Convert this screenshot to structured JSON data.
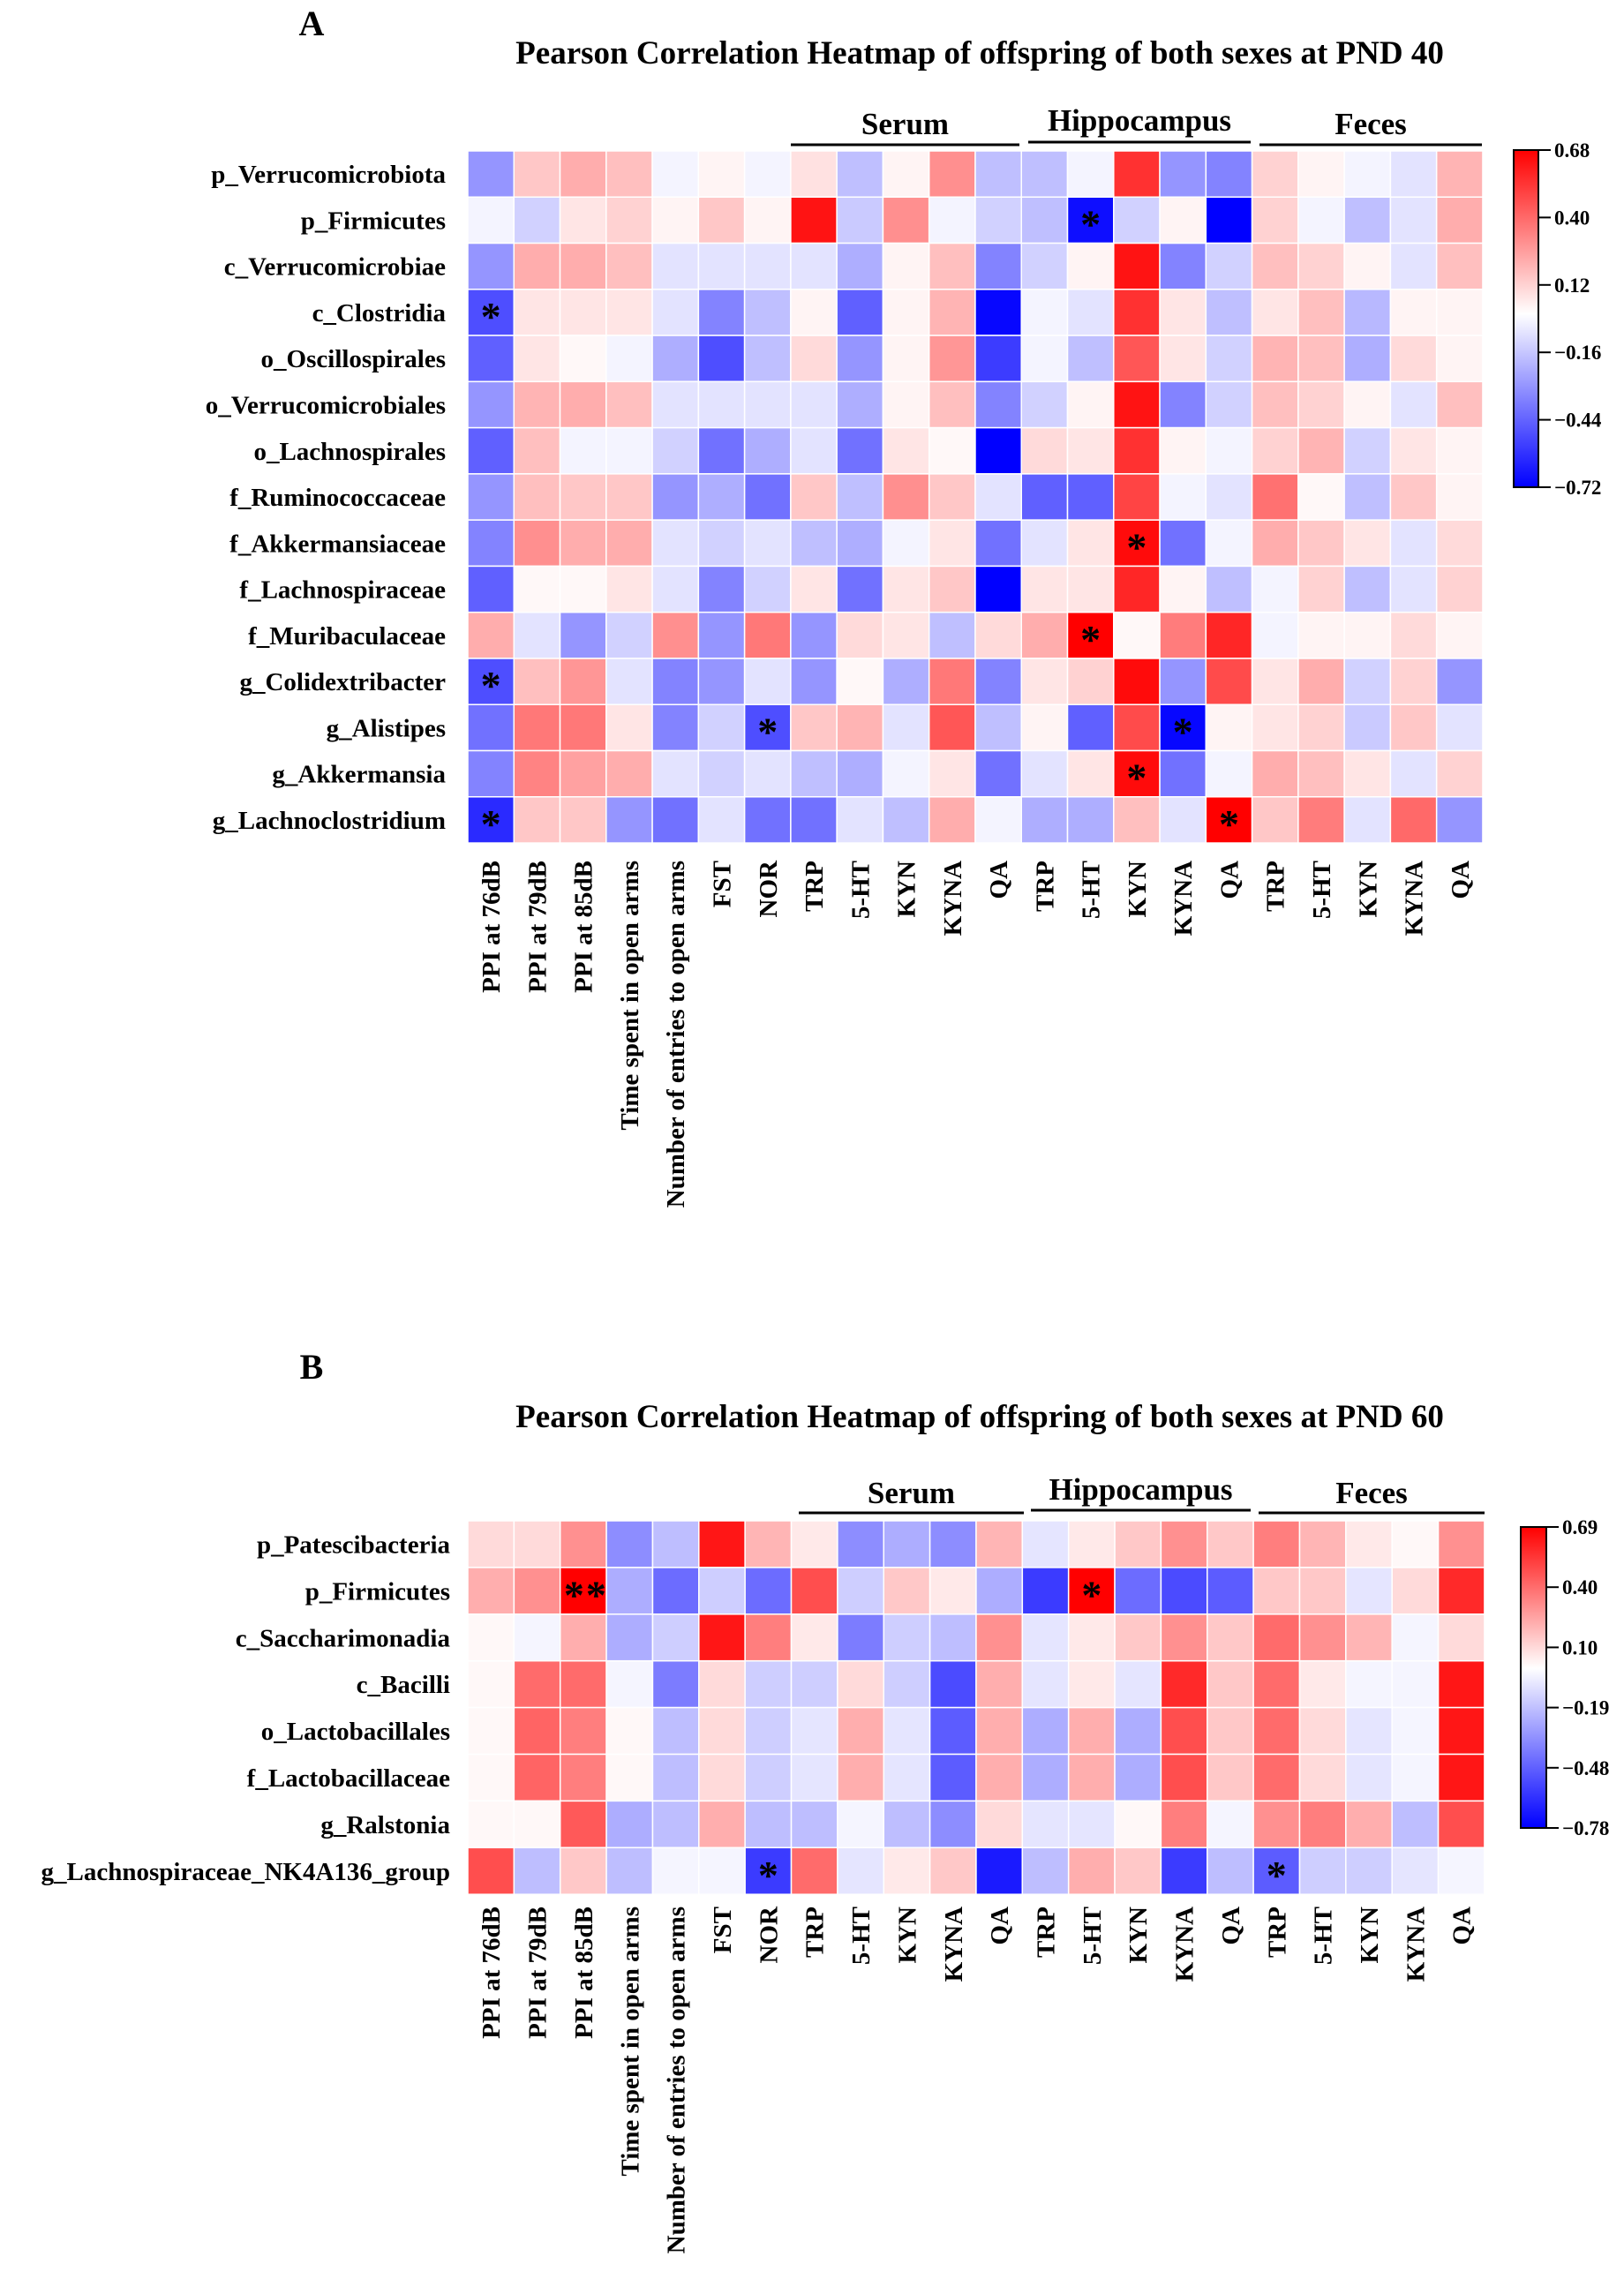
{
  "chart_data": [
    {
      "type": "heatmap",
      "panel": "A",
      "title": "Pearson Correlation Heatmap of offspring of both sexes at PND 40",
      "groups": [
        "Serum",
        "Hippocampus",
        "Feces"
      ],
      "columns": [
        "PPI at 76dB",
        "PPI at 79dB",
        "PPI at 85dB",
        "Time spent in open arms",
        "Number of entries to open arms",
        "FST",
        "NOR",
        "TRP",
        "5-HT",
        "KYN",
        "KYNA",
        "QA",
        "TRP",
        "5-HT",
        "KYN",
        "KYNA",
        "QA",
        "TRP",
        "5-HT",
        "KYN",
        "KYNA",
        "QA"
      ],
      "rows": [
        "p_Verrucomicrobiota",
        "p_Firmicutes",
        "c_Verrucomicrobiae",
        "c_Clostridia",
        "o_Oscillospirales",
        "o_Verrucomicrobiales",
        "o_Lachnospirales",
        "f_Ruminococcaceae",
        "f_Akkermansiaceae",
        "f_Lachnospiraceae",
        "f_Muribaculaceae",
        "g_Colidextribacter",
        "g_Alistipes",
        "g_Akkermansia",
        "g_Lachnoclostridium"
      ],
      "values": [
        [
          -0.3,
          0.15,
          0.22,
          0.17,
          -0.03,
          0.03,
          -0.03,
          0.08,
          -0.18,
          0.03,
          0.3,
          -0.18,
          -0.18,
          -0.03,
          0.55,
          -0.3,
          -0.35,
          0.12,
          0.03,
          -0.03,
          -0.08,
          0.2
        ],
        [
          -0.03,
          -0.13,
          0.07,
          0.12,
          0.03,
          0.15,
          0.03,
          0.63,
          -0.15,
          0.3,
          -0.03,
          -0.13,
          -0.18,
          -0.68,
          -0.13,
          0.03,
          -0.72,
          0.12,
          -0.03,
          -0.18,
          -0.08,
          0.22
        ],
        [
          -0.3,
          0.22,
          0.22,
          0.17,
          -0.08,
          -0.08,
          -0.08,
          -0.08,
          -0.23,
          0.03,
          0.17,
          -0.35,
          -0.13,
          0.03,
          0.63,
          -0.35,
          -0.13,
          0.17,
          0.12,
          0.03,
          -0.08,
          0.17
        ],
        [
          -0.5,
          0.07,
          0.07,
          0.07,
          -0.08,
          -0.35,
          -0.18,
          0.03,
          -0.45,
          0.03,
          0.2,
          -0.7,
          -0.03,
          -0.08,
          0.55,
          0.07,
          -0.18,
          0.07,
          0.17,
          -0.2,
          0.03,
          0.03
        ],
        [
          -0.45,
          0.07,
          0.02,
          -0.03,
          -0.23,
          -0.5,
          -0.18,
          0.1,
          -0.3,
          0.03,
          0.28,
          -0.55,
          -0.03,
          -0.18,
          0.45,
          0.07,
          -0.13,
          0.2,
          0.17,
          -0.23,
          0.1,
          0.03
        ],
        [
          -0.3,
          0.2,
          0.22,
          0.17,
          -0.08,
          -0.08,
          -0.08,
          -0.08,
          -0.23,
          0.03,
          0.17,
          -0.35,
          -0.13,
          0.03,
          0.63,
          -0.35,
          -0.13,
          0.17,
          0.12,
          0.03,
          -0.08,
          0.17
        ],
        [
          -0.45,
          0.17,
          -0.03,
          -0.03,
          -0.13,
          -0.4,
          -0.23,
          -0.08,
          -0.4,
          0.07,
          0.02,
          -0.72,
          0.1,
          0.07,
          0.55,
          0.03,
          -0.03,
          0.12,
          0.2,
          -0.13,
          0.07,
          0.03
        ],
        [
          -0.3,
          0.17,
          0.15,
          0.15,
          -0.3,
          -0.23,
          -0.4,
          0.15,
          -0.18,
          0.3,
          0.15,
          -0.08,
          -0.45,
          -0.45,
          0.5,
          -0.03,
          -0.08,
          0.38,
          0.02,
          -0.18,
          0.15,
          0.03
        ],
        [
          -0.35,
          0.3,
          0.22,
          0.22,
          -0.08,
          -0.13,
          -0.08,
          -0.18,
          -0.23,
          -0.03,
          0.07,
          -0.4,
          -0.08,
          0.07,
          0.65,
          -0.4,
          -0.03,
          0.22,
          0.15,
          0.07,
          -0.08,
          0.1
        ],
        [
          -0.45,
          0.02,
          0.02,
          0.07,
          -0.08,
          -0.35,
          -0.13,
          0.07,
          -0.4,
          0.07,
          0.15,
          -0.72,
          0.07,
          0.07,
          0.58,
          0.03,
          -0.18,
          -0.03,
          0.12,
          -0.18,
          -0.08,
          0.12
        ],
        [
          0.22,
          -0.08,
          -0.3,
          -0.13,
          0.3,
          -0.3,
          0.36,
          -0.3,
          0.1,
          0.07,
          -0.18,
          0.1,
          0.22,
          0.68,
          0.02,
          0.35,
          0.58,
          -0.03,
          0.03,
          0.03,
          0.1,
          0.03
        ],
        [
          -0.5,
          0.17,
          0.28,
          -0.08,
          -0.35,
          -0.3,
          -0.08,
          -0.3,
          0.02,
          -0.23,
          0.36,
          -0.35,
          0.07,
          0.12,
          0.65,
          -0.3,
          0.48,
          0.07,
          0.22,
          -0.13,
          0.12,
          -0.3
        ],
        [
          -0.4,
          0.36,
          0.36,
          0.07,
          -0.35,
          -0.13,
          -0.5,
          0.15,
          0.2,
          -0.08,
          0.45,
          -0.18,
          0.03,
          -0.45,
          0.48,
          -0.7,
          0.03,
          0.07,
          0.12,
          -0.15,
          0.15,
          -0.08
        ],
        [
          -0.35,
          0.33,
          0.25,
          0.22,
          -0.08,
          -0.13,
          -0.08,
          -0.18,
          -0.23,
          -0.03,
          0.07,
          -0.4,
          -0.08,
          0.07,
          0.65,
          -0.4,
          -0.03,
          0.22,
          0.17,
          0.07,
          -0.08,
          0.12
        ],
        [
          -0.6,
          0.15,
          0.15,
          -0.3,
          -0.4,
          -0.08,
          -0.4,
          -0.4,
          -0.08,
          -0.18,
          0.22,
          -0.03,
          -0.23,
          -0.23,
          0.17,
          -0.08,
          0.68,
          0.15,
          0.35,
          -0.08,
          0.4,
          -0.3
        ]
      ],
      "significance": [
        [
          1,
          13,
          "*"
        ],
        [
          3,
          0,
          "*"
        ],
        [
          8,
          14,
          "*"
        ],
        [
          10,
          13,
          "*"
        ],
        [
          11,
          0,
          "*"
        ],
        [
          12,
          6,
          "*"
        ],
        [
          12,
          15,
          "*"
        ],
        [
          13,
          14,
          "*"
        ],
        [
          14,
          0,
          "*"
        ],
        [
          14,
          16,
          "*"
        ]
      ],
      "colorbar": {
        "min": -0.72,
        "max": 0.68,
        "ticks": [
          "0.68",
          "0.40",
          "0.12",
          "−0.16",
          "−0.44",
          "−0.72"
        ],
        "low_color": "#0000ff",
        "mid_color": "#ffffff",
        "high_color": "#ff0000"
      }
    },
    {
      "type": "heatmap",
      "panel": "B",
      "title": "Pearson Correlation Heatmap of offspring of both sexes at PND 60",
      "groups": [
        "Serum",
        "Hippocampus",
        "Feces"
      ],
      "columns": [
        "PPI at 76dB",
        "PPI at 79dB",
        "PPI at 85dB",
        "Time spent in open arms",
        "Number of entries to open arms",
        "FST",
        "NOR",
        "TRP",
        "5-HT",
        "KYN",
        "KYNA",
        "QA",
        "TRP",
        "5-HT",
        "KYN",
        "KYNA",
        "QA",
        "TRP",
        "5-HT",
        "KYN",
        "KYNA",
        "QA"
      ],
      "rows": [
        "p_Patescibacteria",
        "p_Firmicutes",
        "c_Saccharimonadia",
        "c_Bacilli",
        "o_Lactobacillales",
        "f_Lactobacillaceae",
        "g_Ralstonia",
        "g_Lachnospiraceae_NK4A136_group"
      ],
      "values": [
        [
          0.1,
          0.1,
          0.3,
          -0.35,
          -0.2,
          0.63,
          0.2,
          0.06,
          -0.35,
          -0.25,
          -0.35,
          0.2,
          -0.08,
          0.06,
          0.15,
          0.3,
          0.15,
          0.35,
          0.2,
          0.06,
          0.02,
          0.3
        ],
        [
          0.22,
          0.3,
          0.69,
          -0.25,
          -0.45,
          -0.15,
          -0.45,
          0.48,
          -0.15,
          0.15,
          0.06,
          -0.25,
          -0.6,
          0.69,
          -0.45,
          -0.55,
          -0.5,
          0.15,
          0.15,
          -0.08,
          0.1,
          0.58
        ],
        [
          0.02,
          -0.03,
          0.22,
          -0.25,
          -0.15,
          0.63,
          0.35,
          0.06,
          -0.4,
          -0.15,
          -0.2,
          0.3,
          -0.08,
          0.06,
          0.15,
          0.3,
          0.15,
          0.4,
          0.3,
          0.2,
          -0.03,
          0.1
        ],
        [
          0.02,
          0.4,
          0.4,
          -0.03,
          -0.4,
          0.1,
          -0.15,
          -0.15,
          0.1,
          -0.15,
          -0.55,
          0.22,
          -0.08,
          0.06,
          -0.08,
          0.58,
          0.15,
          0.4,
          0.06,
          -0.03,
          -0.03,
          0.63
        ],
        [
          0.02,
          0.42,
          0.35,
          0.02,
          -0.2,
          0.1,
          -0.15,
          -0.08,
          0.22,
          -0.08,
          -0.5,
          0.22,
          -0.25,
          0.22,
          -0.25,
          0.48,
          0.15,
          0.4,
          0.1,
          -0.08,
          -0.03,
          0.63
        ],
        [
          0.02,
          0.42,
          0.35,
          0.02,
          -0.2,
          0.1,
          -0.15,
          -0.08,
          0.22,
          -0.08,
          -0.5,
          0.22,
          -0.25,
          0.22,
          -0.25,
          0.48,
          0.15,
          0.4,
          0.1,
          -0.08,
          -0.03,
          0.63
        ],
        [
          0.02,
          0.02,
          0.45,
          -0.25,
          -0.2,
          0.22,
          -0.2,
          -0.2,
          -0.03,
          -0.2,
          -0.35,
          0.1,
          -0.08,
          -0.08,
          0.02,
          0.35,
          -0.03,
          0.3,
          0.35,
          0.22,
          -0.2,
          0.48
        ],
        [
          0.48,
          -0.2,
          0.15,
          -0.2,
          -0.03,
          -0.03,
          -0.6,
          0.4,
          -0.08,
          0.06,
          0.15,
          -0.7,
          -0.2,
          0.22,
          0.15,
          -0.6,
          -0.2,
          -0.5,
          -0.15,
          -0.15,
          -0.08,
          -0.03
        ]
      ],
      "significance": [
        [
          1,
          2,
          "**"
        ],
        [
          1,
          13,
          "*"
        ],
        [
          7,
          6,
          "*"
        ],
        [
          7,
          17,
          "*"
        ]
      ],
      "colorbar": {
        "min": -0.78,
        "max": 0.69,
        "ticks": [
          "0.69",
          "0.40",
          "0.10",
          "−0.19",
          "−0.48",
          "−0.78"
        ],
        "low_color": "#0000ff",
        "mid_color": "#ffffff",
        "high_color": "#ff0000"
      }
    }
  ]
}
